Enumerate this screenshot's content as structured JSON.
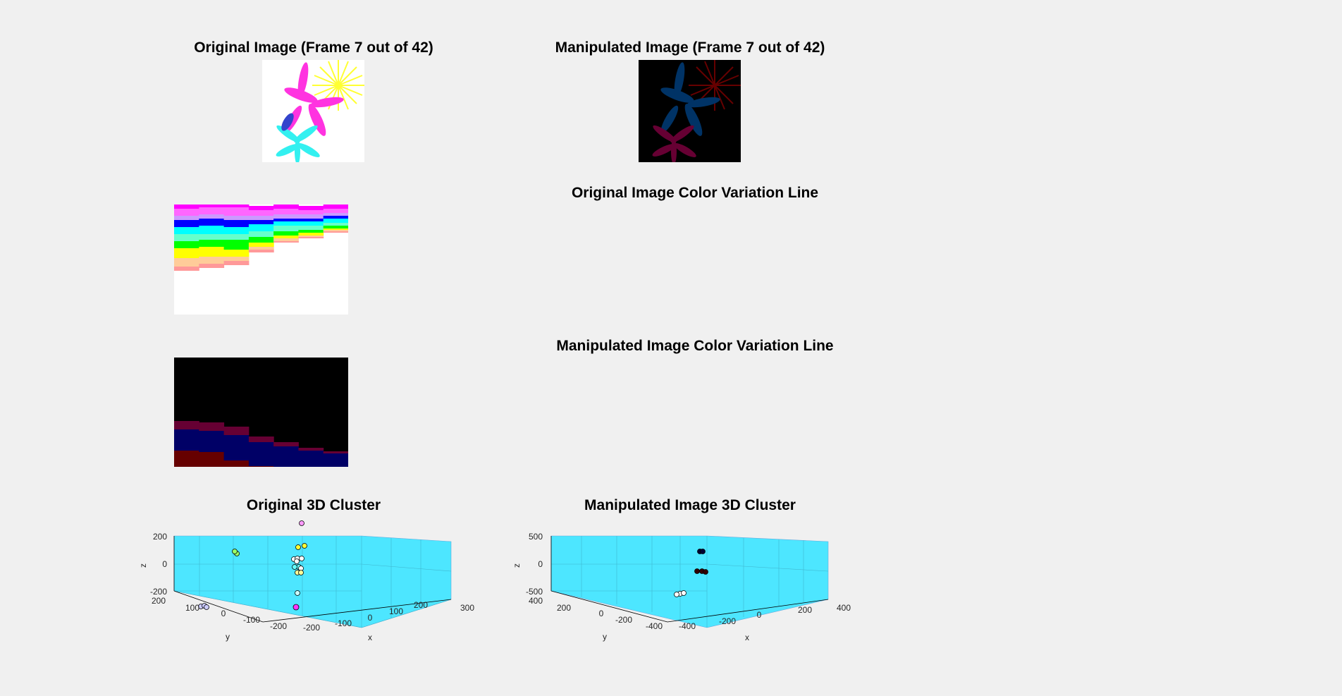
{
  "figure": {
    "titles": {
      "original_image": "Original Image (Frame 7 out of 42)",
      "manipulated_image": "Manipulated Image (Frame 7 out of 42)",
      "original_color_line": "Original Image Color Variation Line",
      "manipulated_color_line": "Manipulated Image Color Variation Line",
      "original_cluster": "Original 3D Cluster",
      "manipulated_cluster": "Manipulated Image 3D Cluster"
    },
    "colors": {
      "background": "#f0f0f0",
      "axes_face": "#4de6ff",
      "magenta": "#ff33e0",
      "yellow": "#ffff33",
      "cyan": "#33f0f0",
      "dark_blue": "#003366",
      "dark_red": "#660000",
      "dark_magenta": "#660033"
    }
  },
  "chart_data": [
    {
      "type": "scatter",
      "title": "Original 3D Cluster",
      "xlabel": "x",
      "ylabel": "y",
      "zlabel": "z",
      "x_ticks": [
        "-200",
        "-100",
        "0",
        "100",
        "200",
        "300"
      ],
      "y_ticks": [
        "-200",
        "-100",
        "0",
        "100",
        "200"
      ],
      "z_ticks": [
        "-200",
        "0",
        "200"
      ],
      "xlim": [
        -250,
        300
      ],
      "ylim": [
        -250,
        200
      ],
      "zlim": [
        -200,
        200
      ],
      "grid": true
    },
    {
      "type": "scatter",
      "title": "Manipulated Image 3D Cluster",
      "xlabel": "x",
      "ylabel": "y",
      "zlabel": "z",
      "x_ticks": [
        "-400",
        "-200",
        "0",
        "200",
        "400"
      ],
      "y_ticks": [
        "-400",
        "-200",
        "0",
        "200",
        "400"
      ],
      "z_ticks": [
        "-500",
        "0",
        "500"
      ],
      "xlim": [
        -450,
        450
      ],
      "ylim": [
        -450,
        400
      ],
      "zlim": [
        -500,
        500
      ],
      "grid": true
    }
  ]
}
